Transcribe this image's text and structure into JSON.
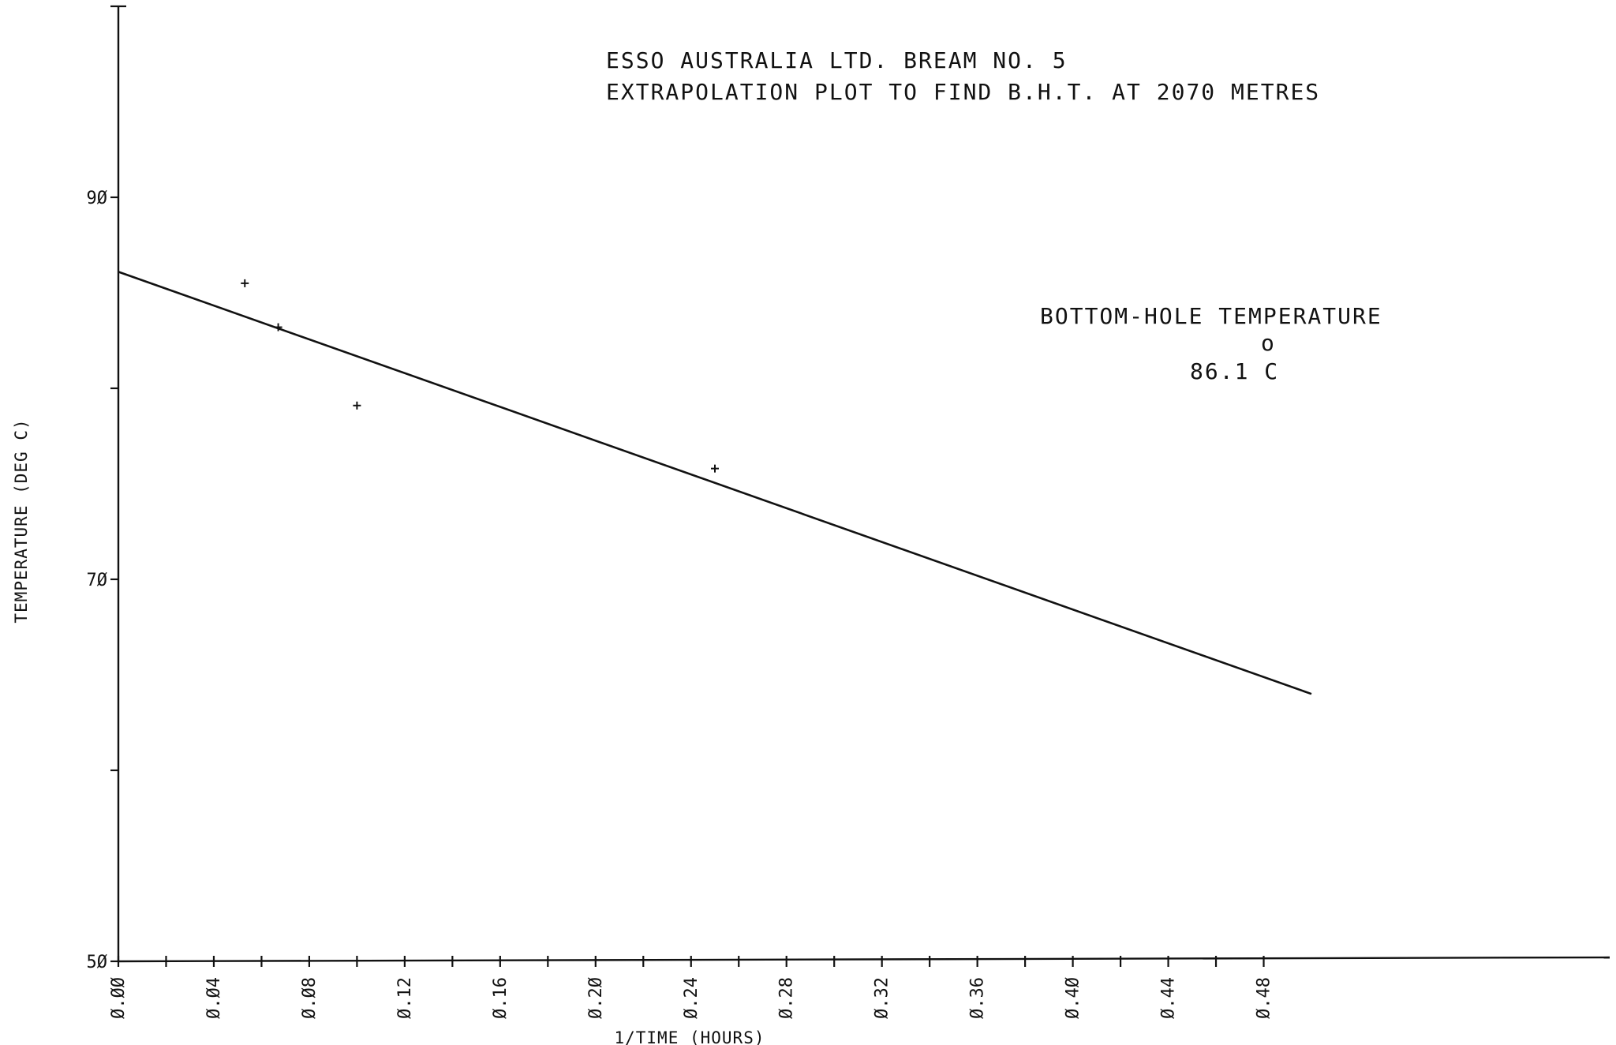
{
  "chart_data": {
    "type": "scatter",
    "title_lines": [
      "ESSO AUSTRALIA LTD.   BREAM NO. 5",
      "EXTRAPOLATION PLOT TO FIND B.H.T.  AT 2070 METRES"
    ],
    "xlabel": "1/TIME (HOURS)",
    "ylabel": "TEMPERATURE (DEG C)",
    "xlim": [
      0.0,
      0.5
    ],
    "ylim": [
      50,
      100
    ],
    "x_tick_values": [
      0.0,
      0.02,
      0.04,
      0.06,
      0.08,
      0.1,
      0.12,
      0.14,
      0.16,
      0.18,
      0.2,
      0.22,
      0.24,
      0.26,
      0.28,
      0.3,
      0.32,
      0.34,
      0.36,
      0.38,
      0.4,
      0.42,
      0.44,
      0.46,
      0.48
    ],
    "x_tick_labels": [
      "Ø.ØØ",
      "Ø.Ø4",
      "Ø.Ø8",
      "Ø.12",
      "Ø.16",
      "Ø.2Ø",
      "Ø.24",
      "Ø.28",
      "Ø.32",
      "Ø.36",
      "Ø.4Ø",
      "Ø.44",
      "Ø.48"
    ],
    "x_tick_label_values": [
      0.0,
      0.04,
      0.08,
      0.12,
      0.16,
      0.2,
      0.24,
      0.28,
      0.32,
      0.36,
      0.4,
      0.44,
      0.48
    ],
    "y_tick_values": [
      50,
      60,
      70,
      80,
      90,
      100
    ],
    "y_tick_labels": [
      "5Ø",
      "7Ø",
      "9Ø"
    ],
    "y_tick_label_values": [
      50,
      70,
      90
    ],
    "points": [
      {
        "x": 0.053,
        "y": 85.5
      },
      {
        "x": 0.067,
        "y": 83.2
      },
      {
        "x": 0.1,
        "y": 79.1
      },
      {
        "x": 0.25,
        "y": 75.8
      }
    ],
    "fit_line": {
      "x": [
        0.0,
        0.5
      ],
      "y": [
        86.1,
        64.0
      ]
    },
    "annotation": {
      "label": "BOTTOM-HOLE TEMPERATURE",
      "degree_symbol": "o",
      "value": "86.1 C"
    },
    "grid": false,
    "legend": "none"
  }
}
